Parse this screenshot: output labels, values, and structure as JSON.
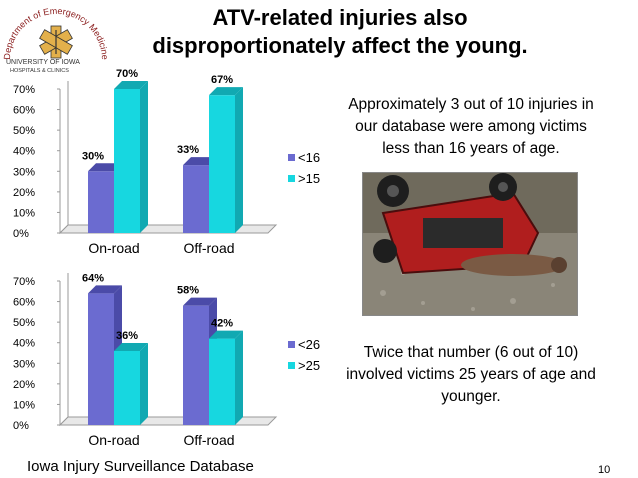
{
  "title": {
    "line1": "ATV-related injuries also",
    "line2": "disproportionately affect the young."
  },
  "logo": {
    "arc_text": "Department of Emergency Medicine",
    "university": "UNIVERSITY OF IOWA",
    "hospitals": "HOSPITALS & CLINICS"
  },
  "text1": "Approximately 3 out of 10 injuries in our database were among victims less than 16 years of age.",
  "text2": "Twice that number (6 out of 10) involved victims 25 years of age and younger.",
  "footer": "Iowa Injury Surveillance Database",
  "slide_number": "10",
  "colors": {
    "series_a": "#6b6bd0",
    "series_a_dark": "#4b4ba8",
    "series_b": "#17d7e0",
    "series_b_dark": "#11a9b2"
  },
  "chart_data": [
    {
      "type": "bar",
      "categories": [
        "On-road",
        "Off-road"
      ],
      "series": [
        {
          "name": "<16",
          "values": [
            30,
            33
          ],
          "labels": [
            "30%",
            "33%"
          ]
        },
        {
          "name": ">15",
          "values": [
            70,
            67
          ],
          "labels": [
            "70%",
            "67%"
          ]
        }
      ],
      "ylim": [
        0,
        70
      ],
      "yticks": [
        "0%",
        "10%",
        "20%",
        "30%",
        "40%",
        "50%",
        "60%",
        "70%"
      ],
      "legend": "right",
      "grid": false
    },
    {
      "type": "bar",
      "categories": [
        "On-road",
        "Off-road"
      ],
      "series": [
        {
          "name": "<26",
          "values": [
            64,
            58
          ],
          "labels": [
            "64%",
            "58%"
          ]
        },
        {
          "name": ">25",
          "values": [
            36,
            42
          ],
          "labels": [
            "36%",
            "42%"
          ]
        }
      ],
      "ylim": [
        0,
        70
      ],
      "yticks": [
        "0%",
        "10%",
        "20%",
        "30%",
        "40%",
        "50%",
        "60%",
        "70%"
      ],
      "legend": "right",
      "grid": false
    }
  ]
}
